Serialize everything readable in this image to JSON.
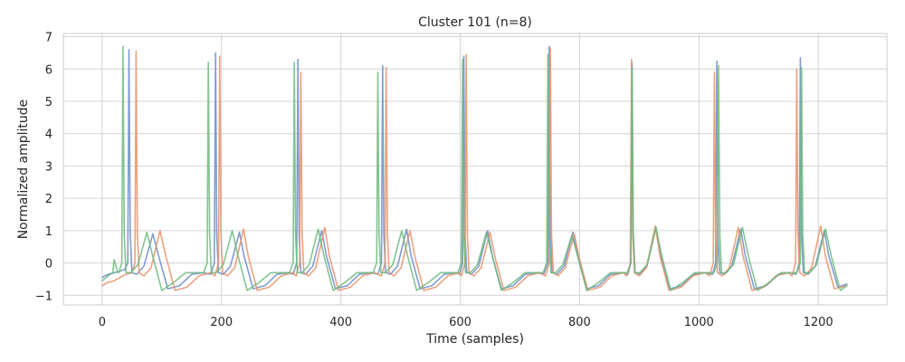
{
  "chart_data": {
    "type": "line",
    "title": "Cluster 101 (n=8)",
    "xlabel": "Time (samples)",
    "ylabel": "Normalized amplitude",
    "xlim": [
      -65,
      1315
    ],
    "ylim": [
      -1.3,
      7.1
    ],
    "xticks": [
      0,
      200,
      400,
      600,
      800,
      1000,
      1200
    ],
    "yticks": [
      -1,
      0,
      1,
      2,
      3,
      4,
      5,
      6,
      7
    ],
    "grid": true,
    "legend": "none",
    "beat_period": 143,
    "series": [
      {
        "color": "#6b8cc7",
        "beat_offsets": [
          45,
          190,
          328,
          470,
          606,
          749,
          888,
          1030,
          1170
        ],
        "peaks": [
          6.6,
          6.5,
          6.3,
          6.1,
          6.4,
          6.7,
          6.2,
          6.25,
          6.35
        ],
        "x": [
          0,
          10,
          20,
          30,
          38,
          43,
          45,
          47,
          50,
          58,
          70,
          85,
          95,
          110,
          130,
          150,
          170,
          182,
          188,
          190,
          192,
          195,
          203,
          215,
          230,
          238,
          253,
          273,
          293,
          313,
          320,
          326,
          328,
          330,
          333,
          341,
          353,
          368,
          376,
          391,
          411,
          431,
          451,
          462,
          468,
          470,
          472,
          475,
          483,
          495,
          510,
          518,
          533,
          553,
          573,
          593,
          599,
          604,
          606,
          608,
          611,
          619,
          631,
          646,
          654,
          669,
          689,
          709,
          729,
          740,
          747,
          749,
          751,
          754,
          762,
          774,
          789,
          797,
          812,
          832,
          852,
          872,
          881,
          886,
          888,
          890,
          893,
          901,
          913,
          928,
          936,
          951,
          971,
          991,
          1011,
          1023,
          1028,
          1030,
          1032,
          1035,
          1043,
          1055,
          1070,
          1078,
          1093,
          1113,
          1133,
          1153,
          1163,
          1168,
          1170,
          1172,
          1175,
          1183,
          1195,
          1210,
          1218,
          1233,
          1248
        ],
        "y": [
          -0.45,
          -0.35,
          -0.3,
          -0.25,
          -0.2,
          0.0,
          6.6,
          0.9,
          -0.3,
          -0.35,
          -0.1,
          0.9,
          0.2,
          -0.8,
          -0.7,
          -0.35,
          -0.3,
          -0.35,
          0.0,
          6.5,
          0.9,
          -0.3,
          -0.35,
          -0.1,
          0.95,
          0.2,
          -0.8,
          -0.7,
          -0.35,
          -0.3,
          -0.35,
          0.0,
          6.3,
          0.9,
          -0.3,
          -0.35,
          -0.1,
          1.0,
          0.2,
          -0.8,
          -0.7,
          -0.35,
          -0.3,
          -0.35,
          0.0,
          6.1,
          0.9,
          -0.3,
          -0.35,
          -0.1,
          1.05,
          0.2,
          -0.8,
          -0.7,
          -0.35,
          -0.3,
          -0.35,
          0.0,
          6.4,
          0.9,
          -0.3,
          -0.35,
          -0.1,
          1.0,
          0.2,
          -0.8,
          -0.7,
          -0.35,
          -0.3,
          -0.35,
          0.0,
          6.7,
          0.9,
          -0.3,
          -0.35,
          -0.1,
          0.95,
          0.2,
          -0.8,
          -0.7,
          -0.35,
          -0.3,
          -0.35,
          0.0,
          6.2,
          0.9,
          -0.3,
          -0.35,
          -0.1,
          1.1,
          0.2,
          -0.8,
          -0.7,
          -0.35,
          -0.3,
          -0.35,
          0.0,
          6.25,
          0.9,
          -0.3,
          -0.35,
          -0.1,
          1.05,
          0.2,
          -0.8,
          -0.7,
          -0.35,
          -0.3,
          -0.35,
          0.0,
          6.35,
          0.9,
          -0.3,
          -0.35,
          -0.1,
          1.0,
          0.2,
          -0.75,
          -0.65
        ]
      },
      {
        "color": "#e8926a",
        "beat_offsets": [
          57,
          197,
          333,
          476,
          610,
          751,
          887,
          1026,
          1164
        ],
        "peaks": [
          6.55,
          6.4,
          5.9,
          6.05,
          6.45,
          6.65,
          6.3,
          5.9,
          6.0
        ],
        "x": [
          0,
          10,
          20,
          30,
          40,
          50,
          55,
          57,
          59,
          62,
          70,
          82,
          97,
          107,
          122,
          142,
          162,
          182,
          189,
          195,
          197,
          199,
          202,
          210,
          222,
          237,
          245,
          260,
          280,
          300,
          320,
          325,
          331,
          333,
          335,
          338,
          346,
          358,
          373,
          381,
          396,
          416,
          436,
          456,
          468,
          474,
          476,
          478,
          481,
          489,
          501,
          516,
          524,
          539,
          559,
          579,
          599,
          602,
          608,
          610,
          612,
          615,
          623,
          635,
          650,
          658,
          673,
          693,
          713,
          733,
          743,
          749,
          751,
          753,
          756,
          764,
          776,
          791,
          799,
          814,
          834,
          854,
          874,
          879,
          885,
          887,
          889,
          892,
          900,
          912,
          927,
          935,
          950,
          970,
          990,
          1010,
          1018,
          1024,
          1026,
          1028,
          1031,
          1039,
          1051,
          1066,
          1074,
          1089,
          1109,
          1129,
          1149,
          1156,
          1162,
          1164,
          1166,
          1169,
          1177,
          1189,
          1204,
          1212,
          1227,
          1248
        ],
        "y": [
          -0.7,
          -0.6,
          -0.55,
          -0.45,
          -0.35,
          -0.3,
          0.0,
          6.55,
          0.9,
          -0.3,
          -0.4,
          -0.15,
          1.0,
          0.2,
          -0.85,
          -0.75,
          -0.4,
          -0.3,
          -0.4,
          0.0,
          6.4,
          0.9,
          -0.3,
          -0.4,
          -0.15,
          1.05,
          0.2,
          -0.85,
          -0.75,
          -0.4,
          -0.3,
          -0.4,
          0.0,
          5.9,
          0.9,
          -0.3,
          -0.4,
          -0.15,
          1.1,
          0.2,
          -0.85,
          -0.75,
          -0.4,
          -0.3,
          -0.4,
          0.0,
          6.05,
          0.9,
          -0.3,
          -0.4,
          -0.15,
          1.0,
          0.2,
          -0.85,
          -0.75,
          -0.4,
          -0.3,
          -0.4,
          0.0,
          6.45,
          0.9,
          -0.3,
          -0.4,
          -0.15,
          0.95,
          0.2,
          -0.85,
          -0.75,
          -0.4,
          -0.3,
          -0.4,
          0.0,
          6.65,
          0.9,
          -0.3,
          -0.4,
          -0.15,
          0.9,
          0.2,
          -0.85,
          -0.75,
          -0.4,
          -0.3,
          -0.4,
          0.0,
          6.3,
          0.9,
          -0.3,
          -0.4,
          -0.15,
          1.15,
          0.2,
          -0.85,
          -0.75,
          -0.4,
          -0.3,
          -0.4,
          0.0,
          5.9,
          0.9,
          -0.3,
          -0.4,
          -0.15,
          1.1,
          0.2,
          -0.85,
          -0.75,
          -0.4,
          -0.3,
          -0.4,
          0.0,
          6.0,
          0.9,
          -0.3,
          -0.4,
          -0.15,
          1.15,
          0.2,
          -0.8,
          -0.7
        ]
      },
      {
        "color": "#6dbb7e",
        "beat_offsets": [
          35,
          178,
          322,
          462,
          604,
          747,
          888,
          1033,
          1172
        ],
        "peaks": [
          6.7,
          6.2,
          6.2,
          5.9,
          6.3,
          6.45,
          6.05,
          6.1,
          6.05
        ],
        "x": [
          0,
          10,
          18,
          20,
          26,
          28,
          33,
          35,
          37,
          40,
          48,
          60,
          75,
          85,
          100,
          120,
          140,
          160,
          170,
          176,
          178,
          180,
          183,
          191,
          203,
          218,
          228,
          243,
          263,
          283,
          303,
          314,
          320,
          322,
          324,
          327,
          335,
          347,
          362,
          372,
          387,
          407,
          427,
          447,
          454,
          460,
          462,
          464,
          467,
          475,
          487,
          502,
          512,
          527,
          547,
          567,
          587,
          596,
          602,
          604,
          606,
          609,
          617,
          629,
          644,
          654,
          669,
          689,
          709,
          729,
          739,
          745,
          747,
          749,
          752,
          760,
          772,
          787,
          797,
          812,
          832,
          852,
          872,
          880,
          886,
          888,
          890,
          893,
          901,
          913,
          928,
          938,
          953,
          973,
          993,
          1013,
          1025,
          1031,
          1033,
          1035,
          1038,
          1046,
          1058,
          1073,
          1083,
          1098,
          1118,
          1138,
          1158,
          1164,
          1170,
          1172,
          1174,
          1177,
          1185,
          1197,
          1212,
          1222,
          1237,
          1248
        ],
        "y": [
          -0.55,
          -0.4,
          -0.3,
          0.1,
          -0.3,
          -0.3,
          0.0,
          6.7,
          0.9,
          -0.3,
          -0.3,
          -0.05,
          0.95,
          0.2,
          -0.85,
          -0.6,
          -0.3,
          -0.3,
          -0.3,
          0.0,
          6.2,
          0.9,
          -0.3,
          -0.3,
          -0.05,
          1.0,
          0.2,
          -0.85,
          -0.6,
          -0.3,
          -0.3,
          -0.3,
          0.0,
          6.2,
          0.9,
          -0.3,
          -0.3,
          -0.05,
          1.05,
          0.2,
          -0.85,
          -0.6,
          -0.3,
          -0.3,
          -0.3,
          0.0,
          5.9,
          0.9,
          -0.3,
          -0.3,
          -0.05,
          1.0,
          0.2,
          -0.85,
          -0.6,
          -0.3,
          -0.3,
          -0.3,
          0.0,
          6.3,
          0.9,
          -0.3,
          -0.3,
          -0.05,
          0.95,
          0.2,
          -0.85,
          -0.6,
          -0.3,
          -0.3,
          -0.3,
          0.0,
          6.45,
          0.9,
          -0.3,
          -0.3,
          -0.05,
          0.85,
          0.2,
          -0.85,
          -0.6,
          -0.3,
          -0.3,
          -0.3,
          0.0,
          6.05,
          0.9,
          -0.3,
          -0.3,
          -0.05,
          1.1,
          0.2,
          -0.85,
          -0.6,
          -0.3,
          -0.3,
          -0.3,
          0.0,
          6.1,
          0.9,
          -0.3,
          -0.3,
          -0.05,
          1.1,
          0.2,
          -0.85,
          -0.6,
          -0.3,
          -0.3,
          -0.3,
          0.0,
          6.05,
          0.9,
          -0.3,
          -0.3,
          -0.05,
          1.05,
          0.2,
          -0.85,
          -0.7
        ]
      }
    ]
  }
}
